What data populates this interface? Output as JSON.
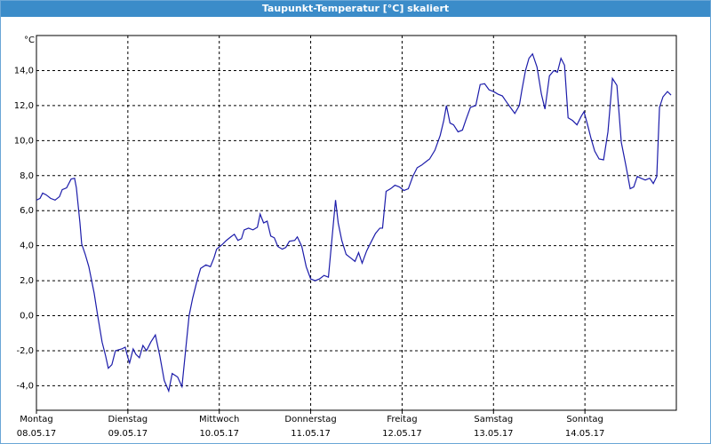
{
  "chart_data": {
    "type": "line",
    "title": "Taupunkt-Temperatur [°C] skaliert",
    "y_unit": "°C",
    "xlim": [
      0,
      7
    ],
    "ylim": [
      -5.4,
      16
    ],
    "grid": true,
    "xticks": [
      {
        "value": 0,
        "label": "Montag\n08.05.17"
      },
      {
        "value": 1,
        "label": "Dienstag\n09.05.17"
      },
      {
        "value": 2,
        "label": "Mittwoch\n10.05.17"
      },
      {
        "value": 3,
        "label": "Donnerstag\n11.05.17"
      },
      {
        "value": 4,
        "label": "Freitag\n12.05.17"
      },
      {
        "value": 5,
        "label": "Samstag\n13.05.17"
      },
      {
        "value": 6,
        "label": "Sonntag\n14.05.17"
      }
    ],
    "yticks": [
      {
        "value": -4,
        "label": "-4,0"
      },
      {
        "value": -2,
        "label": "-2,0"
      },
      {
        "value": 0,
        "label": "0,0"
      },
      {
        "value": 2,
        "label": "2,0"
      },
      {
        "value": 4,
        "label": "4,0"
      },
      {
        "value": 6,
        "label": "6,0"
      },
      {
        "value": 8,
        "label": "8,0"
      },
      {
        "value": 10,
        "label": "10,0"
      },
      {
        "value": 12,
        "label": "12,0"
      },
      {
        "value": 14,
        "label": "14,0"
      }
    ],
    "series": [
      {
        "color": "#1c1caa",
        "x": [
          0,
          0.039,
          0.068,
          0.107,
          0.155,
          0.204,
          0.252,
          0.282,
          0.33,
          0.379,
          0.417,
          0.437,
          0.476,
          0.495,
          0.534,
          0.573,
          0.631,
          0.67,
          0.718,
          0.757,
          0.786,
          0.825,
          0.864,
          0.932,
          0.971,
          1.0,
          1.019,
          1.058,
          1.087,
          1.126,
          1.165,
          1.204,
          1.252,
          1.301,
          1.35,
          1.398,
          1.447,
          1.485,
          1.544,
          1.592,
          1.641,
          1.67,
          1.709,
          1.757,
          1.796,
          1.854,
          1.903,
          1.942,
          1.971,
          2.029,
          2.078,
          2.126,
          2.165,
          2.204,
          2.243,
          2.272,
          2.32,
          2.369,
          2.417,
          2.447,
          2.485,
          2.524,
          2.563,
          2.602,
          2.641,
          2.689,
          2.728,
          2.767,
          2.825,
          2.854,
          2.903,
          2.951,
          3.0,
          3.049,
          3.097,
          3.146,
          3.194,
          3.233,
          3.272,
          3.301,
          3.34,
          3.388,
          3.437,
          3.485,
          3.524,
          3.563,
          3.612,
          3.66,
          3.709,
          3.757,
          3.786,
          3.825,
          3.874,
          3.922,
          3.971,
          4.019,
          4.068,
          4.117,
          4.165,
          4.214,
          4.262,
          4.301,
          4.359,
          4.417,
          4.456,
          4.485,
          4.524,
          4.563,
          4.612,
          4.66,
          4.699,
          4.748,
          4.806,
          4.854,
          4.903,
          4.951,
          5.0,
          5.049,
          5.097,
          5.136,
          5.184,
          5.233,
          5.282,
          5.311,
          5.35,
          5.388,
          5.427,
          5.476,
          5.524,
          5.563,
          5.612,
          5.66,
          5.699,
          5.738,
          5.777,
          5.816,
          5.864,
          5.913,
          5.961,
          5.99,
          6.029,
          6.068,
          6.107,
          6.155,
          6.204,
          6.252,
          6.301,
          6.35,
          6.398,
          6.447,
          6.495,
          6.534,
          6.573,
          6.612,
          6.66,
          6.709,
          6.748,
          6.786,
          6.816,
          6.854,
          6.903,
          6.942
        ],
        "values": [
          6.6,
          6.7,
          7.0,
          6.9,
          6.7,
          6.6,
          6.8,
          7.2,
          7.3,
          7.8,
          7.85,
          7.3,
          5.3,
          4.1,
          3.5,
          2.8,
          1.3,
          0.0,
          -1.5,
          -2.3,
          -3.0,
          -2.8,
          -2.0,
          -1.9,
          -1.8,
          -2.4,
          -2.7,
          -1.9,
          -2.2,
          -2.4,
          -1.7,
          -2.0,
          -1.5,
          -1.1,
          -2.3,
          -3.7,
          -4.3,
          -3.3,
          -3.5,
          -4.05,
          -1.5,
          0.0,
          1.0,
          2.0,
          2.7,
          2.9,
          2.8,
          3.3,
          3.8,
          4.05,
          4.3,
          4.5,
          4.65,
          4.3,
          4.4,
          4.9,
          5.0,
          4.9,
          5.05,
          5.8,
          5.3,
          5.4,
          4.55,
          4.45,
          3.95,
          3.8,
          3.9,
          4.25,
          4.3,
          4.5,
          3.95,
          2.8,
          2.1,
          2.0,
          2.1,
          2.3,
          2.2,
          4.4,
          6.6,
          5.3,
          4.3,
          3.5,
          3.3,
          3.1,
          3.6,
          3.0,
          3.7,
          4.2,
          4.7,
          5.0,
          5.0,
          7.1,
          7.25,
          7.45,
          7.35,
          7.15,
          7.25,
          7.95,
          8.45,
          8.6,
          8.8,
          8.95,
          9.45,
          10.3,
          11.15,
          12.0,
          11.0,
          10.9,
          10.5,
          10.6,
          11.2,
          11.9,
          12.0,
          13.2,
          13.25,
          12.9,
          12.8,
          12.65,
          12.55,
          12.25,
          11.9,
          11.55,
          12.0,
          12.9,
          14.0,
          14.7,
          14.95,
          14.2,
          12.65,
          11.8,
          13.7,
          14.0,
          13.9,
          14.7,
          14.3,
          11.3,
          11.15,
          10.9,
          11.4,
          11.65,
          10.9,
          10.1,
          9.4,
          8.95,
          8.9,
          10.5,
          13.55,
          13.15,
          9.9,
          8.6,
          7.25,
          7.35,
          7.95,
          7.85,
          7.75,
          7.85,
          7.55,
          7.95,
          11.9,
          12.5,
          12.8,
          12.6
        ]
      }
    ]
  }
}
